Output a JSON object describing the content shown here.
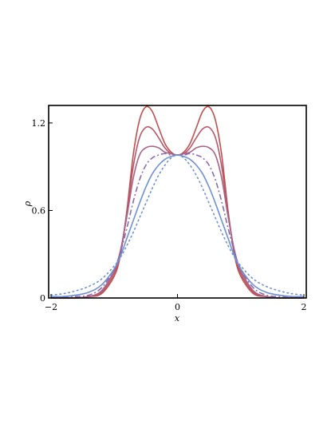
{
  "chart_data": {
    "type": "line",
    "title": "",
    "xlabel": "x",
    "ylabel": "ρ",
    "xlim": [
      -2,
      2
    ],
    "ylim": [
      0,
      1.32
    ],
    "xticks": [
      -2,
      0,
      2
    ],
    "xtick_labels": [
      "−2",
      "0",
      "2"
    ],
    "yticks": [
      0,
      0.6,
      1.2
    ],
    "ytick_labels": [
      "0",
      "0.6",
      "1.2"
    ],
    "grid": false,
    "legend": "none",
    "x": [
      -2.0,
      -1.8,
      -1.6,
      -1.4,
      -1.2,
      -1.0,
      -0.9,
      -0.8,
      -0.7,
      -0.6,
      -0.5,
      -0.4,
      -0.3,
      -0.2,
      -0.1,
      0.0,
      0.1,
      0.2,
      0.3,
      0.4,
      0.5,
      0.6,
      0.7,
      0.8,
      0.9,
      1.0,
      1.2,
      1.4,
      1.6,
      1.8,
      2.0
    ],
    "series": [
      {
        "color": "#c0504d",
        "dash": "solid",
        "values": [
          0.0,
          0.0,
          0.0,
          0.01,
          0.03,
          0.15,
          0.3,
          0.6,
          0.98,
          1.22,
          1.31,
          1.28,
          1.17,
          1.06,
          1.0,
          0.98,
          1.0,
          1.06,
          1.17,
          1.28,
          1.31,
          1.22,
          0.98,
          0.6,
          0.3,
          0.15,
          0.03,
          0.01,
          0.0,
          0.0,
          0.0
        ]
      },
      {
        "color": "#b8566b",
        "dash": "solid",
        "values": [
          0.0,
          0.0,
          0.0,
          0.01,
          0.04,
          0.17,
          0.32,
          0.58,
          0.9,
          1.1,
          1.17,
          1.16,
          1.1,
          1.03,
          0.99,
          0.98,
          0.99,
          1.03,
          1.1,
          1.16,
          1.17,
          1.1,
          0.9,
          0.58,
          0.32,
          0.17,
          0.04,
          0.01,
          0.0,
          0.0,
          0.0
        ]
      },
      {
        "color": "#a86284",
        "dash": "solid",
        "values": [
          0.0,
          0.0,
          0.0,
          0.01,
          0.05,
          0.19,
          0.33,
          0.56,
          0.82,
          0.98,
          1.03,
          1.04,
          1.03,
          1.0,
          0.99,
          0.98,
          0.99,
          1.0,
          1.03,
          1.04,
          1.03,
          0.98,
          0.82,
          0.56,
          0.33,
          0.19,
          0.05,
          0.01,
          0.0,
          0.0,
          0.0
        ]
      },
      {
        "color": "#8a6bb0",
        "dash": "dashdot",
        "values": [
          0.0,
          0.01,
          0.01,
          0.02,
          0.07,
          0.2,
          0.32,
          0.48,
          0.66,
          0.81,
          0.91,
          0.96,
          0.98,
          0.99,
          0.98,
          0.98,
          0.98,
          0.99,
          0.98,
          0.96,
          0.91,
          0.81,
          0.66,
          0.48,
          0.32,
          0.2,
          0.07,
          0.02,
          0.01,
          0.01,
          0.0
        ]
      },
      {
        "color": "#6f8fd6",
        "dash": "solid",
        "values": [
          0.01,
          0.01,
          0.02,
          0.04,
          0.09,
          0.2,
          0.29,
          0.41,
          0.53,
          0.65,
          0.76,
          0.85,
          0.91,
          0.95,
          0.97,
          0.98,
          0.97,
          0.95,
          0.91,
          0.85,
          0.76,
          0.65,
          0.53,
          0.41,
          0.29,
          0.2,
          0.09,
          0.04,
          0.02,
          0.01,
          0.01
        ]
      },
      {
        "color": "#6f8fd6",
        "dash": "dotted",
        "values": [
          0.02,
          0.03,
          0.05,
          0.08,
          0.13,
          0.22,
          0.28,
          0.36,
          0.45,
          0.55,
          0.65,
          0.75,
          0.84,
          0.91,
          0.96,
          0.98,
          0.96,
          0.91,
          0.84,
          0.75,
          0.65,
          0.55,
          0.45,
          0.36,
          0.28,
          0.22,
          0.13,
          0.08,
          0.05,
          0.03,
          0.02
        ]
      }
    ]
  }
}
